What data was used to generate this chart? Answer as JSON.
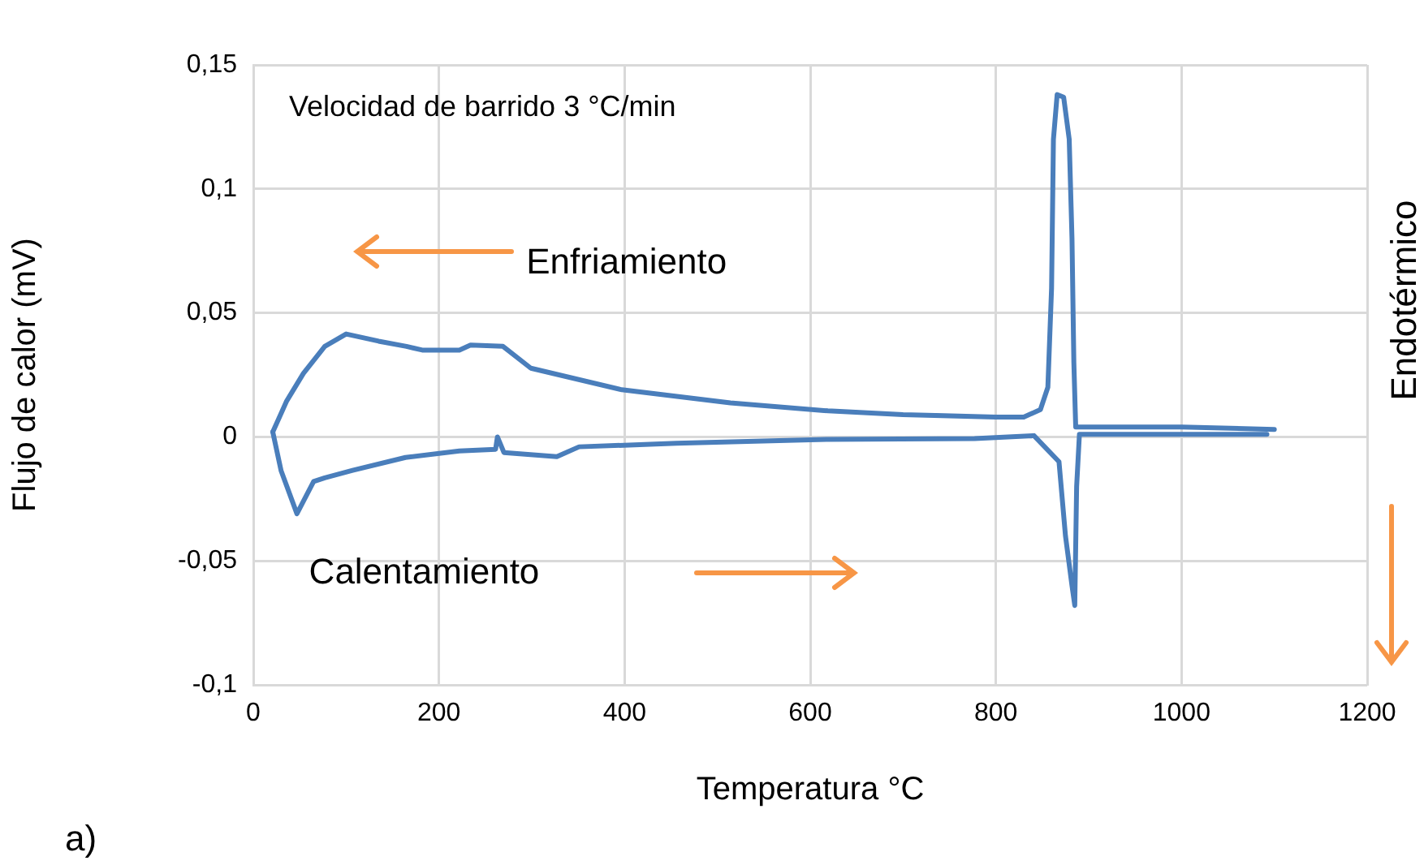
{
  "chart_data": {
    "type": "line",
    "xlabel": "Temperatura °C",
    "ylabel": "Flujo de calor (mV)",
    "annotations": [
      "Velocidad de barrido 3 °C/min",
      "Enfriamiento",
      "Calentamiento",
      "Endotérmico",
      "a)"
    ],
    "xlim": [
      0,
      1200
    ],
    "xticks": [
      0,
      200,
      400,
      600,
      800,
      1000,
      1200
    ],
    "ylim": [
      -0.1,
      0.15
    ],
    "yticks": [
      {
        "value": -0.1,
        "label": "-0,1"
      },
      {
        "value": -0.05,
        "label": "-0,05"
      },
      {
        "value": 0,
        "label": "0"
      },
      {
        "value": 0.05,
        "label": "0,05"
      },
      {
        "value": 0.1,
        "label": "0,1"
      },
      {
        "value": 0.15,
        "label": "0,15"
      }
    ],
    "grid": true,
    "legend": false,
    "marker": "none",
    "line_style": "solid",
    "series": [
      {
        "color": "#4a7ebb",
        "x": [
          21,
          30,
          47,
          65,
          77,
          107,
          164,
          222,
          261,
          263,
          270,
          327,
          351,
          456,
          619,
          777,
          841,
          868,
          875,
          882,
          885,
          887,
          890,
          950,
          1050,
          1092
        ],
        "values": [
          0.002,
          -0.0137,
          -0.031,
          -0.018,
          -0.0165,
          -0.0135,
          -0.0083,
          -0.0057,
          -0.005,
          0,
          -0.0063,
          -0.008,
          -0.004,
          -0.0026,
          -0.001,
          -0.0007,
          0.0005,
          -0.01,
          -0.04,
          -0.06,
          -0.068,
          -0.02,
          0.001,
          0.001,
          0.001,
          0.001
        ]
      },
      {
        "color": "#4a7ebb",
        "x": [
          1100,
          1000,
          900,
          886,
          884,
          882,
          879,
          873,
          866,
          862,
          860,
          856,
          848,
          830,
          800,
          700,
          619,
          514,
          397,
          299,
          269,
          234,
          222,
          182,
          165,
          135,
          100,
          77,
          54,
          36,
          21
        ],
        "values": [
          0.003,
          0.004,
          0.004,
          0.004,
          0.03,
          0.08,
          0.12,
          0.137,
          0.138,
          0.12,
          0.06,
          0.02,
          0.011,
          0.008,
          0.008,
          0.009,
          0.0105,
          0.0137,
          0.019,
          0.0277,
          0.0365,
          0.037,
          0.035,
          0.035,
          0.0365,
          0.0386,
          0.0415,
          0.0365,
          0.0256,
          0.0145,
          0.002
        ]
      }
    ]
  }
}
